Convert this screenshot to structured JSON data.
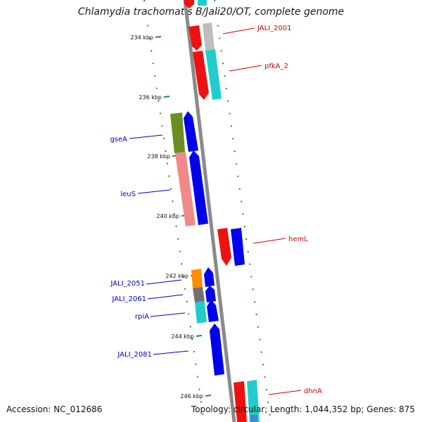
{
  "title": "Chlamydia trachomatis B/Jali20/OT, complete genome",
  "accession": "Accession: NC_012686",
  "footer": "Topology: circular; Length: 1,044,352 bp; Genes: 875",
  "colors": {
    "backbone": "#8a8a8a",
    "ruler": "#2e8b2e",
    "forward_label": "#cc0000",
    "reverse_label": "#0000bb"
  },
  "ticks": [
    "234 kbp",
    "236 kbp",
    "238 kbp",
    "240 kbp",
    "242 kbp",
    "244 kbp",
    "246 kbp"
  ],
  "gene_labels": [
    {
      "text": "JALI_2001",
      "strand": "forward"
    },
    {
      "text": "pfkA_2",
      "strand": "forward"
    },
    {
      "text": "gseA",
      "strand": "reverse"
    },
    {
      "text": "leuS",
      "strand": "reverse"
    },
    {
      "text": "hemL",
      "strand": "forward"
    },
    {
      "text": "JALI_2051",
      "strand": "reverse"
    },
    {
      "text": "JALI_2061",
      "strand": "reverse"
    },
    {
      "text": "rpiA",
      "strand": "reverse"
    },
    {
      "text": "JALI_2081",
      "strand": "reverse"
    },
    {
      "text": "dhnA",
      "strand": "forward"
    }
  ]
}
